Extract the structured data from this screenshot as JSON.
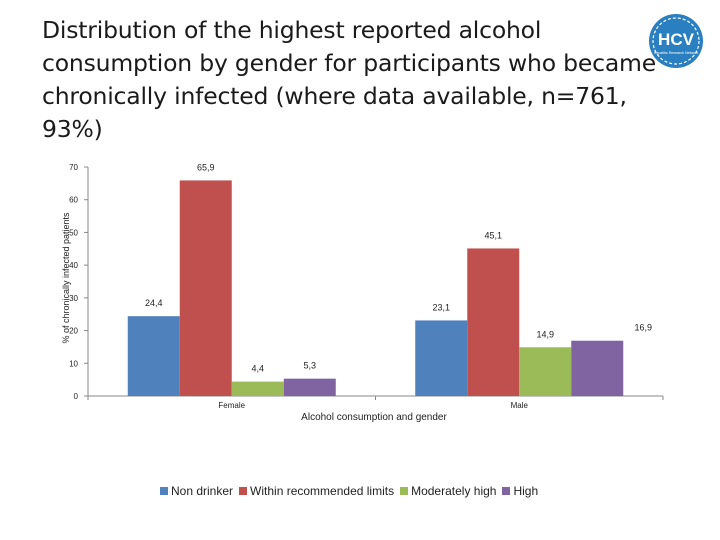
{
  "title": "Distribution of the highest reported alcohol consumption by gender for participants who became chronically infected (where data available, n=761, 93%)",
  "logo": {
    "text": "HCV",
    "subtext": "Hepatitis Research Network",
    "color": "#2a7fc0"
  },
  "chart_data": {
    "type": "bar",
    "title": "Distribution of the highest reported alcohol consumption by gender for participants who became chronically infected (where data available, n=761, 93%)",
    "xlabel": "Alcohol consumption and gender",
    "ylabel": "% of chronically infected patients",
    "ylim": [
      0,
      70
    ],
    "yticks": [
      "0",
      "10",
      "20",
      "30",
      "40",
      "50",
      "60",
      "70"
    ],
    "categories": [
      "Female",
      "Male"
    ],
    "series": [
      {
        "name": "Non drinker",
        "color": "#4f81bd",
        "values": [
          24.4,
          23.1
        ],
        "labels": [
          "24,4",
          "23,1"
        ]
      },
      {
        "name": "Within recommended limits",
        "color": "#c0504d",
        "values": [
          65.9,
          45.1
        ],
        "labels": [
          "65,9",
          "45,1"
        ]
      },
      {
        "name": "Moderately high",
        "color": "#9bbb59",
        "values": [
          4.4,
          14.9
        ],
        "labels": [
          "4,4",
          "14,9"
        ]
      },
      {
        "name": "High",
        "color": "#8064a2",
        "values": [
          5.3,
          16.9
        ],
        "labels": [
          "5,3",
          "16,9"
        ]
      }
    ],
    "legend": "bottom",
    "grid": false
  }
}
